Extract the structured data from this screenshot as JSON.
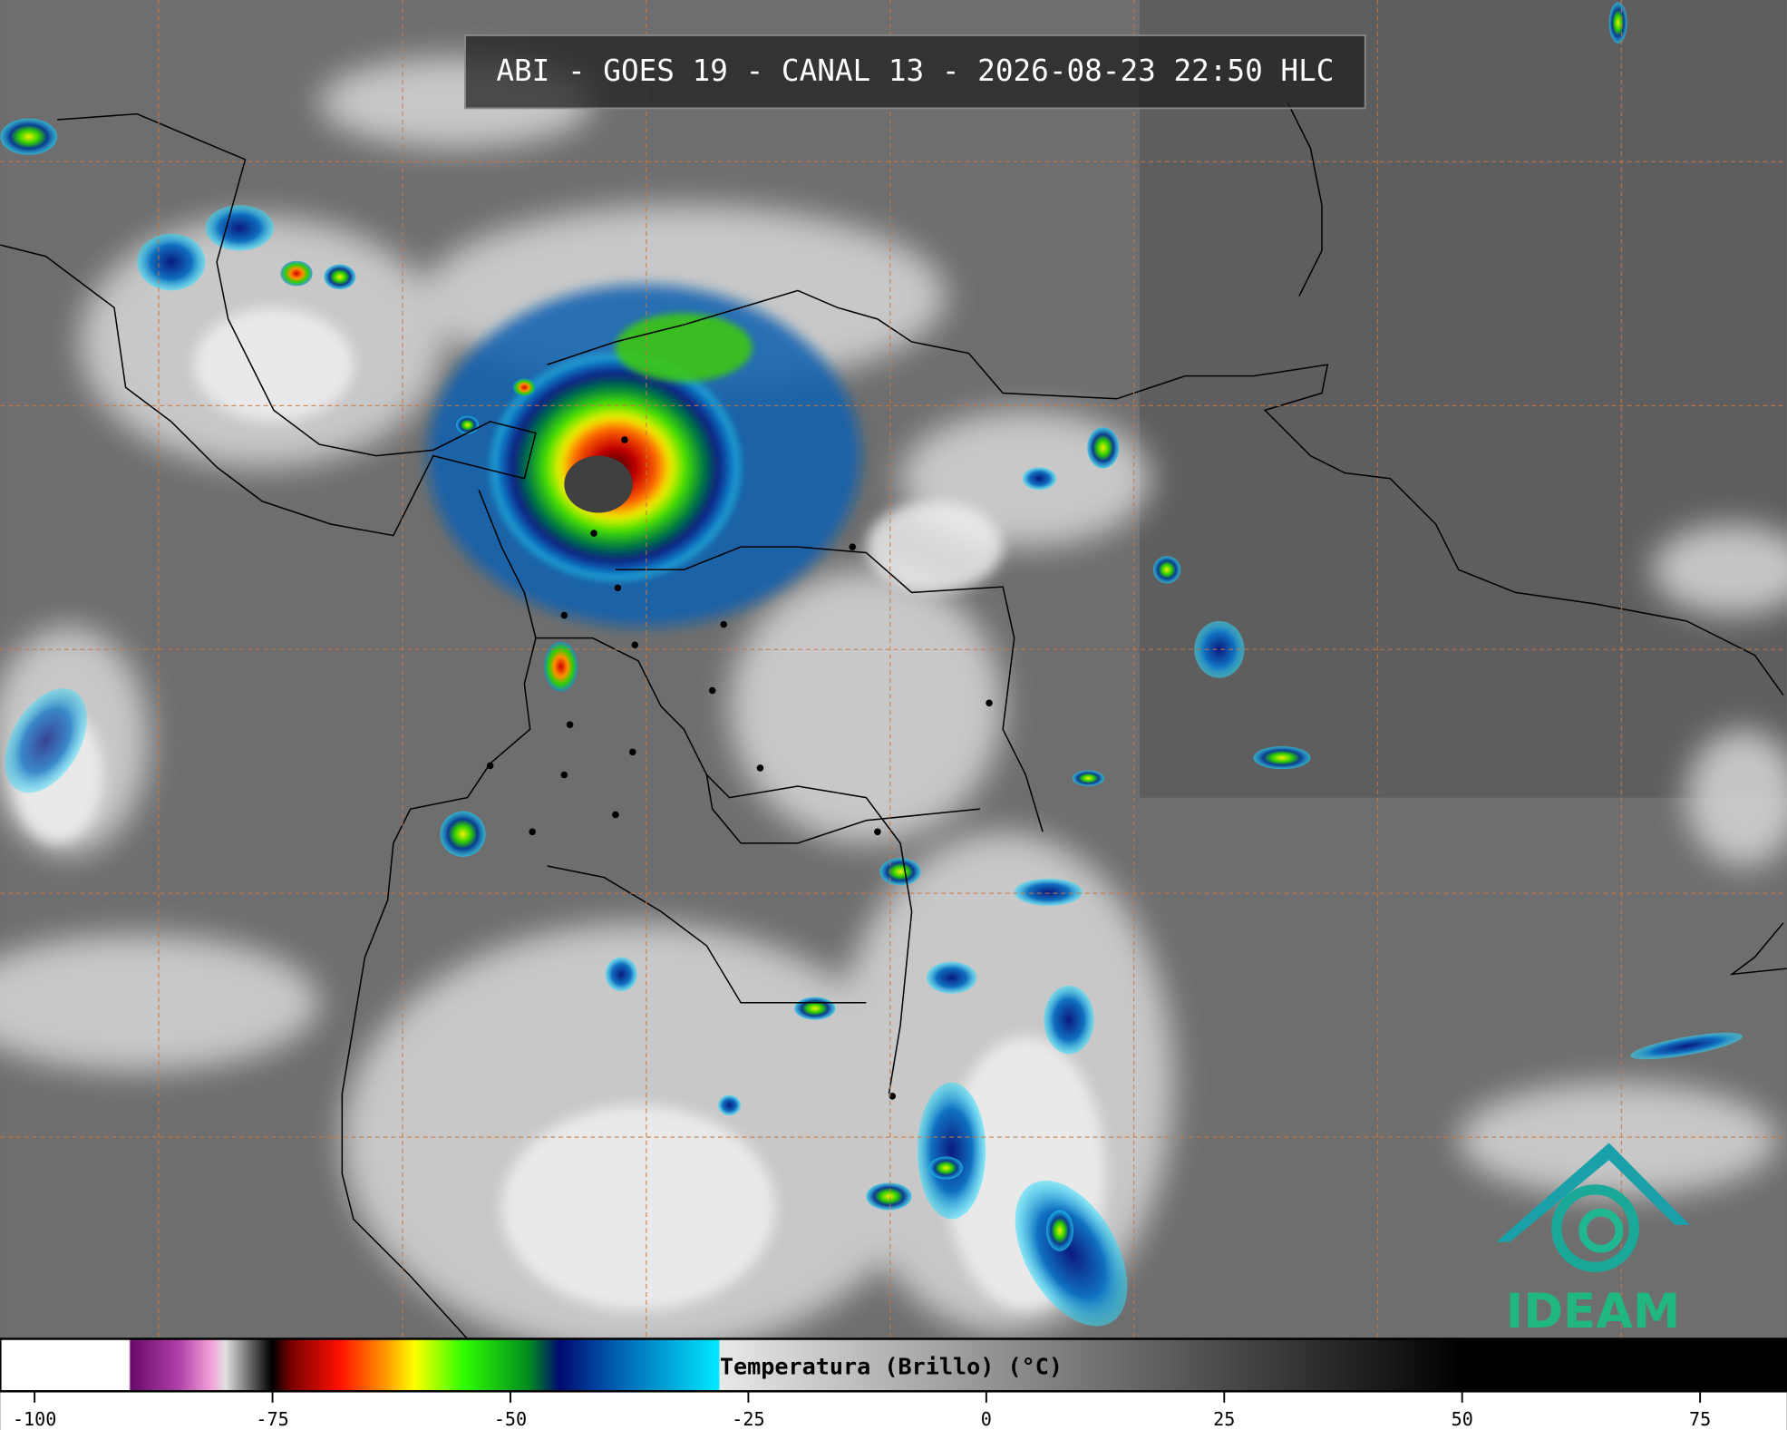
{
  "title": "ABI - GOES 19 - CANAL 13 - 2026-08-23 22:50 HLC",
  "colorbar": {
    "label": "Temperatura (Brillo) (°C)",
    "lim": [
      -103.6,
      84.1
    ],
    "ticks": [
      -100,
      -75,
      -50,
      -25,
      0,
      25,
      50,
      75
    ]
  },
  "logo": "IDEAM"
}
